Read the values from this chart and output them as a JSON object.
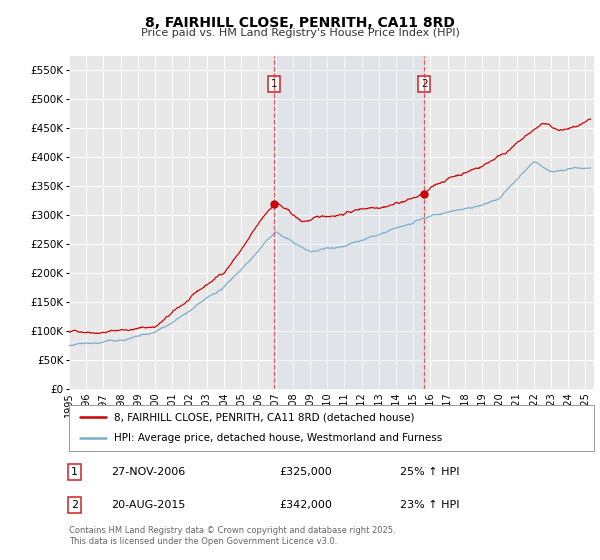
{
  "title": "8, FAIRHILL CLOSE, PENRITH, CA11 8RD",
  "subtitle": "Price paid vs. HM Land Registry's House Price Index (HPI)",
  "background_color": "#ffffff",
  "plot_bg_color": "#e8e8e8",
  "grid_color": "#ffffff",
  "red_line_color": "#cc0000",
  "blue_line_color": "#7aaccc",
  "marker1_date": 2006.9,
  "marker2_date": 2015.63,
  "legend_line1": "8, FAIRHILL CLOSE, PENRITH, CA11 8RD (detached house)",
  "legend_line2": "HPI: Average price, detached house, Westmorland and Furness",
  "footer": "Contains HM Land Registry data © Crown copyright and database right 2025.\nThis data is licensed under the Open Government Licence v3.0.",
  "xmin": 1995,
  "xmax": 2025.5,
  "ymin": 0,
  "ymax": 575000,
  "yticks": [
    0,
    50000,
    100000,
    150000,
    200000,
    250000,
    300000,
    350000,
    400000,
    450000,
    500000,
    550000
  ],
  "ytick_labels": [
    "£0",
    "£50K",
    "£100K",
    "£150K",
    "£200K",
    "£250K",
    "£300K",
    "£350K",
    "£400K",
    "£450K",
    "£500K",
    "£550K"
  ],
  "ann1_num": "1",
  "ann1_date": "27-NOV-2006",
  "ann1_price": "£325,000",
  "ann1_hpi": "25% ↑ HPI",
  "ann1_price_val": 325000,
  "ann2_num": "2",
  "ann2_date": "20-AUG-2015",
  "ann2_price": "£342,000",
  "ann2_hpi": "23% ↑ HPI",
  "ann2_price_val": 342000
}
